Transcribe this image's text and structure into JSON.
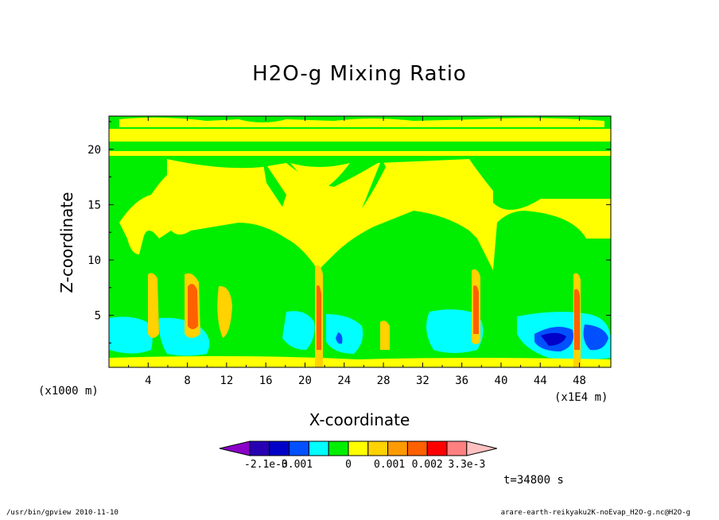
{
  "chart_data": {
    "type": "heatmap",
    "title": "H2O-g Mixing Ratio",
    "xlabel": "X-coordinate",
    "ylabel": "Z-coordinate",
    "x_unit_left": "(x1000 m)",
    "x_unit_right": "(x1E4 m)",
    "xlim": [
      0,
      51.2
    ],
    "ylim": [
      0.3,
      23
    ],
    "xticks": [
      "4",
      "8",
      "12",
      "16",
      "20",
      "24",
      "28",
      "32",
      "36",
      "40",
      "44",
      "48"
    ],
    "yticks": [
      "5",
      "10",
      "15",
      "20"
    ],
    "grid": false,
    "colorbar": {
      "labels": [
        "-2.1e-3",
        "-0.001",
        "0",
        "0.001",
        "0.002",
        "3.3e-3"
      ],
      "colors": [
        "#8a00c8",
        "#2800b4",
        "#0000c8",
        "#0050ff",
        "#00ffff",
        "#00ee00",
        "#ffff00",
        "#ffd200",
        "#ff9a00",
        "#ff6000",
        "#ff0000",
        "#ff8080",
        "#ffc0c0"
      ]
    },
    "annotations": {
      "time": "t=34800 s",
      "footer_left": "/usr/bin/gpview   2010-11-10",
      "footer_right": "arare-earth-reikyaku2K-noEvap_H2O-g.nc@H2O-g"
    }
  }
}
